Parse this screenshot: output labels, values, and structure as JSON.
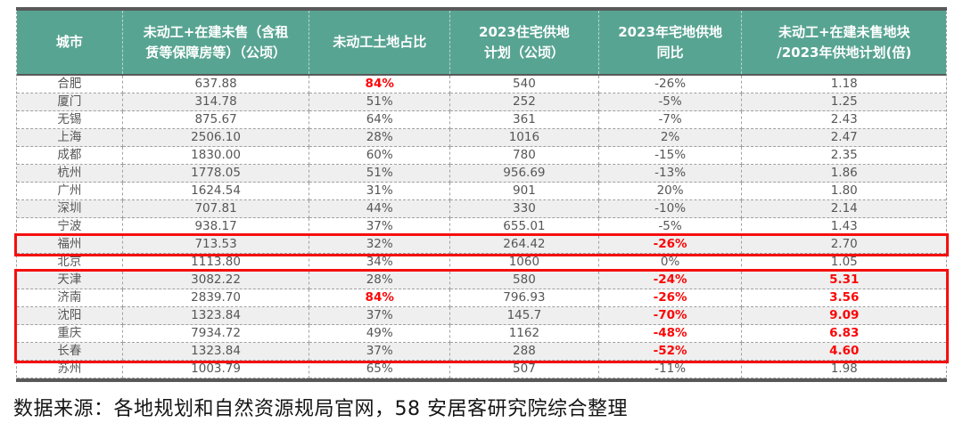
{
  "chart_data": {
    "type": "table",
    "columns": [
      "城市",
      "未动工+在建未售（含租\n赁等保障房等）（公顷）",
      "未动工土地占比",
      "2023住宅供地\n计划（公顷）",
      "2023年宅地供地\n同比",
      "未动工+在建未售地块\n/2023年供地计划(倍)"
    ],
    "rows": [
      {
        "city": "合肥",
        "values": [
          "637.88",
          "84%",
          "540",
          "-26%",
          "1.18"
        ],
        "red": [
          1
        ]
      },
      {
        "city": "厦门",
        "values": [
          "314.78",
          "51%",
          "252",
          "-5%",
          "1.25"
        ],
        "red": []
      },
      {
        "city": "无锡",
        "values": [
          "875.67",
          "64%",
          "361",
          "-7%",
          "2.43"
        ],
        "red": []
      },
      {
        "city": "上海",
        "values": [
          "2506.10",
          "28%",
          "1016",
          "2%",
          "2.47"
        ],
        "red": []
      },
      {
        "city": "成都",
        "values": [
          "1830.00",
          "60%",
          "780",
          "-15%",
          "2.35"
        ],
        "red": []
      },
      {
        "city": "杭州",
        "values": [
          "1778.05",
          "51%",
          "956.69",
          "-13%",
          "1.86"
        ],
        "red": []
      },
      {
        "city": "广州",
        "values": [
          "1624.54",
          "31%",
          "901",
          "20%",
          "1.80"
        ],
        "red": []
      },
      {
        "city": "深圳",
        "values": [
          "707.81",
          "44%",
          "330",
          "-10%",
          "2.14"
        ],
        "red": []
      },
      {
        "city": "宁波",
        "values": [
          "938.17",
          "37%",
          "655.01",
          "-5%",
          "1.43"
        ],
        "red": []
      },
      {
        "city": "福州",
        "values": [
          "713.53",
          "32%",
          "264.42",
          "-26%",
          "2.70"
        ],
        "red": [
          3
        ]
      },
      {
        "city": "北京",
        "values": [
          "1113.80",
          "34%",
          "1060",
          "0%",
          "1.05"
        ],
        "red": []
      },
      {
        "city": "天津",
        "values": [
          "3082.22",
          "28%",
          "580",
          "-24%",
          "5.31"
        ],
        "red": [
          3,
          4
        ]
      },
      {
        "city": "济南",
        "values": [
          "2839.70",
          "84%",
          "796.93",
          "-26%",
          "3.56"
        ],
        "red": [
          1,
          3,
          4
        ]
      },
      {
        "city": "沈阳",
        "values": [
          "1323.84",
          "37%",
          "145.7",
          "-70%",
          "9.09"
        ],
        "red": [
          3,
          4
        ]
      },
      {
        "city": "重庆",
        "values": [
          "7934.72",
          "49%",
          "1162",
          "-48%",
          "6.83"
        ],
        "red": [
          3,
          4
        ]
      },
      {
        "city": "长春",
        "values": [
          "1323.84",
          "37%",
          "288",
          "-52%",
          "4.60"
        ],
        "red": [
          3,
          4
        ]
      },
      {
        "city": "苏州",
        "values": [
          "1003.79",
          "65%",
          "507",
          "-11%",
          "1.98"
        ],
        "red": []
      }
    ],
    "highlight_boxes": [
      {
        "label": "福州",
        "from_index": 9,
        "to_index": 9
      },
      {
        "label": "天津—长春",
        "from_index": 11,
        "to_index": 15
      }
    ],
    "title": "",
    "legend": null,
    "grid": "dashed"
  },
  "footer": {
    "source_text": "数据来源：各地规划和自然资源规局官网，58 安居客研究院综合整理"
  },
  "colors": {
    "header_bg": "#58a492",
    "highlight_red": "#fb0606",
    "row_alt": "#efefef",
    "border_dark": "#595959",
    "dashed_border": "#a0a0a0",
    "body_text": "#565656"
  }
}
